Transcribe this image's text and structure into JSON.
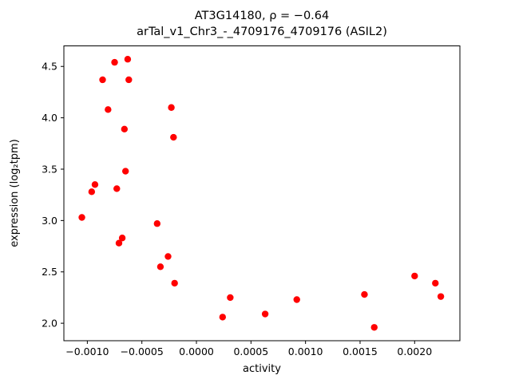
{
  "chart_data": {
    "type": "scatter",
    "title_line1": "AT3G14180, ρ = −0.64",
    "title_line2": "arTal_v1_Chr3_-_4709176_4709176 (ASIL2)",
    "xlabel": "activity",
    "ylabel": "expression (log₂tpm)",
    "marker_color": "#ff0000",
    "marker_radius": 4.2,
    "xlim": [
      -0.001215,
      0.002415
    ],
    "ylim": [
      1.83,
      4.7
    ],
    "xticks": [
      -0.001,
      -0.0005,
      0.0,
      0.0005,
      0.001,
      0.0015,
      0.002
    ],
    "xtick_labels": [
      "−0.0010",
      "−0.0005",
      "0.0000",
      "0.0005",
      "0.0010",
      "0.0015",
      "0.0020"
    ],
    "yticks": [
      2.0,
      2.5,
      3.0,
      3.5,
      4.0,
      4.5
    ],
    "ytick_labels": [
      "2.0",
      "2.5",
      "3.0",
      "3.5",
      "4.0",
      "4.5"
    ],
    "grid": false,
    "legend": null,
    "points": [
      {
        "x": -0.00105,
        "y": 3.03
      },
      {
        "x": -0.00096,
        "y": 3.28
      },
      {
        "x": -0.00093,
        "y": 3.35
      },
      {
        "x": -0.00086,
        "y": 4.37
      },
      {
        "x": -0.00081,
        "y": 4.08
      },
      {
        "x": -0.00075,
        "y": 4.54
      },
      {
        "x": -0.00073,
        "y": 3.31
      },
      {
        "x": -0.00071,
        "y": 2.78
      },
      {
        "x": -0.00068,
        "y": 2.83
      },
      {
        "x": -0.00066,
        "y": 3.89
      },
      {
        "x": -0.00065,
        "y": 3.48
      },
      {
        "x": -0.00063,
        "y": 4.57
      },
      {
        "x": -0.00062,
        "y": 4.37
      },
      {
        "x": -0.00036,
        "y": 2.97
      },
      {
        "x": -0.00033,
        "y": 2.55
      },
      {
        "x": -0.00026,
        "y": 2.65
      },
      {
        "x": -0.00023,
        "y": 4.1
      },
      {
        "x": -0.00021,
        "y": 3.81
      },
      {
        "x": -0.0002,
        "y": 2.39
      },
      {
        "x": 0.00024,
        "y": 2.06
      },
      {
        "x": 0.00031,
        "y": 2.25
      },
      {
        "x": 0.00063,
        "y": 2.09
      },
      {
        "x": 0.00092,
        "y": 2.23
      },
      {
        "x": 0.00154,
        "y": 2.28
      },
      {
        "x": 0.00163,
        "y": 1.96
      },
      {
        "x": 0.002,
        "y": 2.46
      },
      {
        "x": 0.00219,
        "y": 2.39
      },
      {
        "x": 0.00224,
        "y": 2.26
      }
    ]
  }
}
